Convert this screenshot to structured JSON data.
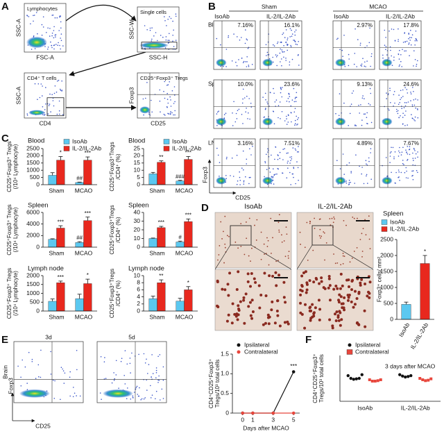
{
  "panels": {
    "letters": [
      "A",
      "B",
      "C",
      "D",
      "E",
      "F"
    ],
    "A": {
      "plots": [
        {
          "title": "Lymphocytes",
          "ylabel": "SSC-A",
          "xlabel": "FSC-A"
        },
        {
          "title": "Single cells",
          "ylabel": "SSC-W",
          "xlabel": "SSC-H"
        },
        {
          "title": "CD4⁺ T cells",
          "ylabel": "SSC-A",
          "xlabel": "CD4"
        },
        {
          "title": "CD25⁺Foxp3⁺ Tregs",
          "ylabel": "Foxp3",
          "xlabel": "CD25"
        }
      ]
    },
    "B": {
      "groups": [
        "Sham",
        "MCAO"
      ],
      "treatments": [
        "IsoAb",
        "IL-2/IL-2Ab",
        "IsoAb",
        "IL-2/IL-2Ab"
      ],
      "tissues": [
        "Blood",
        "Spleen",
        "LN"
      ],
      "percents": [
        [
          "7.16%",
          "16.1%",
          "2.97%",
          "17.8%"
        ],
        [
          "10.0%",
          "23.6%",
          "9.13%",
          "24.6%"
        ],
        [
          "3.16%",
          "7.51%",
          "4.89%",
          "7.67%"
        ]
      ],
      "ylabel": "Foxp3",
      "xlabel": "CD25"
    },
    "D": {
      "images": [
        "IsoAb",
        "IL-2/IL-2Ab"
      ]
    },
    "E": {
      "times": [
        "3d",
        "5d"
      ],
      "tissue": "Brain",
      "ylabel": "Foxp3",
      "xlabel": "CD25"
    }
  },
  "chart_data": [
    {
      "type": "bar",
      "title": "Blood",
      "ylabel": [
        "CD25⁺Foxp3⁺ Tregs",
        "(/10⁴ Lymphocyte)"
      ],
      "categories": [
        "Sham",
        "MCAO"
      ],
      "ylim": [
        0,
        2500
      ],
      "yticks": [
        0,
        500,
        1000,
        1500,
        2000,
        2500
      ],
      "legend": "upper right",
      "series": [
        {
          "name": "IsoAb",
          "color": "#5bc8f0",
          "values": [
            650,
            150
          ],
          "errors": [
            180,
            30
          ],
          "marks": [
            null,
            "##"
          ]
        },
        {
          "name": "IL-2/IL-2Ab",
          "color": "#e8281e",
          "values": [
            1700,
            1700
          ],
          "errors": [
            250,
            220
          ],
          "marks": [
            "*",
            "***"
          ]
        }
      ]
    },
    {
      "type": "bar",
      "title": "Blood",
      "ylabel": [
        "CD25⁺Foxp3⁺Tregs",
        "/CD4⁺ (%)"
      ],
      "categories": [
        "Sham",
        "MCAO"
      ],
      "ylim": [
        0,
        25
      ],
      "yticks": [
        0,
        5,
        10,
        15,
        20,
        25
      ],
      "legend": "upper right",
      "series": [
        {
          "name": "IsoAb",
          "color": "#5bc8f0",
          "values": [
            7.5,
            2.5
          ],
          "errors": [
            1,
            0.5
          ],
          "marks": [
            null,
            "###"
          ]
        },
        {
          "name": "IL-2/IL-2Ab",
          "color": "#e8281e",
          "values": [
            15.5,
            17.5
          ],
          "errors": [
            1,
            2
          ],
          "marks": [
            "**",
            "***"
          ]
        }
      ]
    },
    {
      "type": "bar",
      "title": "Spleen",
      "ylabel": [
        "CD25⁺Foxp3⁺ Tregs",
        "(/10⁴ Lymphocyte)"
      ],
      "categories": [
        "Sham",
        "MCAO"
      ],
      "ylim": [
        0,
        6000
      ],
      "yticks": [
        0,
        2000,
        4000,
        6000
      ],
      "series": [
        {
          "color": "#5bc8f0",
          "values": [
            1350,
            800
          ],
          "errors": [
            100,
            150
          ],
          "marks": [
            null,
            "##"
          ]
        },
        {
          "color": "#e8281e",
          "values": [
            3300,
            4600
          ],
          "errors": [
            400,
            600
          ],
          "marks": [
            "***",
            "***"
          ]
        }
      ]
    },
    {
      "type": "bar",
      "title": "Spleen",
      "ylabel": [
        "CD25⁺Foxp3⁺Tregs",
        "/CD4⁺ (%)"
      ],
      "categories": [
        "Sham",
        "MCAO"
      ],
      "ylim": [
        0,
        40
      ],
      "yticks": [
        0,
        10,
        20,
        30,
        40
      ],
      "series": [
        {
          "color": "#5bc8f0",
          "values": [
            10,
            6
          ],
          "errors": [
            0.5,
            1
          ],
          "marks": [
            null,
            "#"
          ]
        },
        {
          "color": "#e8281e",
          "values": [
            22.5,
            29.5
          ],
          "errors": [
            1.5,
            3
          ],
          "marks": [
            "***",
            "***"
          ]
        }
      ]
    },
    {
      "type": "bar",
      "title": "Lymph node",
      "ylabel": [
        "CD25⁺Foxp3⁺ Tregs",
        "(/10⁴ Lymphocyte)"
      ],
      "categories": [
        "Sham",
        "MCAO"
      ],
      "ylim": [
        0,
        2000
      ],
      "yticks": [
        0,
        500,
        1000,
        1500,
        2000
      ],
      "series": [
        {
          "color": "#5bc8f0",
          "values": [
            550,
            700
          ],
          "errors": [
            130,
            250
          ]
        },
        {
          "color": "#e8281e",
          "values": [
            1600,
            1550
          ],
          "errors": [
            90,
            250
          ],
          "marks": [
            "***",
            "*"
          ]
        }
      ]
    },
    {
      "type": "bar",
      "title": "Lymph node",
      "ylabel": [
        "CD25⁺Foxp3⁺Tregs",
        "/CD4⁺ (%)"
      ],
      "categories": [
        "Sham",
        "MCAO"
      ],
      "ylim": [
        0,
        10
      ],
      "yticks": [
        0,
        2,
        4,
        6,
        8,
        10
      ],
      "series": [
        {
          "color": "#5bc8f0",
          "values": [
            3.5,
            2.8
          ],
          "errors": [
            0.7,
            0.8
          ]
        },
        {
          "color": "#e8281e",
          "values": [
            8,
            6
          ],
          "errors": [
            0.8,
            0.9
          ],
          "marks": [
            "**",
            "*"
          ]
        }
      ]
    },
    {
      "type": "bar",
      "title": "Spleen",
      "ylabel": [
        "Foxp3⁺ cells/ mm²"
      ],
      "categories": [
        "IsoAb",
        "IL-2/IL-2Ab"
      ],
      "values": [
        470,
        1750
      ],
      "errors": [
        70,
        250
      ],
      "value_marks": [
        null,
        "*"
      ],
      "colors": [
        "#5bc8f0",
        "#e8281e"
      ],
      "ylim": [
        0,
        2500
      ],
      "yticks": [
        0,
        500,
        1000,
        1500,
        2000,
        2500
      ],
      "legend": "top"
    },
    {
      "type": "line",
      "ylabel": [
        "CD4⁺CD25⁺Foxp3⁺",
        "Tregs/10³ total cells"
      ],
      "xlabel": "Days after MCAO",
      "x": [
        0,
        1,
        3,
        5
      ],
      "xlim": [
        -1,
        5.6
      ],
      "xticks": [
        0,
        1,
        3,
        5
      ],
      "ylim": [
        0,
        1.5
      ],
      "yticks": [
        0,
        0.5,
        {
          "value": 1,
          "label": "1.0"
        },
        1.5
      ],
      "legend": "upper left",
      "series": [
        {
          "name": "Ipsilateral",
          "color": "#111111",
          "values": [
            0,
            0,
            0,
            1.05
          ],
          "marks": [
            null,
            null,
            null,
            "***"
          ]
        },
        {
          "name": "Contralateral",
          "color": "#e8463c",
          "values": [
            0,
            0,
            0,
            0
          ]
        }
      ]
    },
    {
      "type": "strip",
      "ylabel": [
        "CD4⁺CD25⁺Foxp3⁺",
        "Tregs/10³ total cells"
      ],
      "annotation": "3 days after MCAO",
      "categories": [
        "IsoAb",
        "IL-2/IL-2Ab"
      ],
      "ylim": [
        0,
        1
      ],
      "legend": "upper left",
      "series": [
        {
          "name": "Ipsilateral",
          "color": "#111111",
          "marker": "circle",
          "values": [
            [
              0.56,
              0.5,
              0.48,
              0.49,
              0.5,
              0.58
            ],
            [
              0.58,
              0.55,
              0.53,
              0.54,
              0.56
            ]
          ]
        },
        {
          "name": "Contralateral",
          "color": "#e8463c",
          "marker": "square",
          "values": [
            [
              0.47,
              0.44,
              0.44,
              0.45,
              0.47
            ],
            [
              0.5,
              0.47,
              0.45,
              0.46,
              0.49
            ]
          ]
        }
      ]
    }
  ]
}
